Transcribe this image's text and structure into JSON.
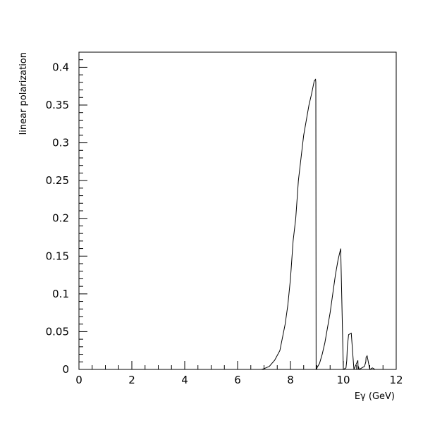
{
  "chart_data": {
    "type": "line",
    "title": "",
    "xlabel": "Eγ (GeV)",
    "ylabel": "linear polarization",
    "xlim": [
      0,
      12
    ],
    "ylim": [
      0,
      0.42
    ],
    "grid": false,
    "legend": "none",
    "colors": {
      "line": "#000000",
      "axes": "#000000",
      "background": "#ffffff"
    },
    "x_ticks": [
      {
        "value": 0,
        "label": "0"
      },
      {
        "value": 2,
        "label": "2"
      },
      {
        "value": 4,
        "label": "4"
      },
      {
        "value": 6,
        "label": "6"
      },
      {
        "value": 8,
        "label": "8"
      },
      {
        "value": 10,
        "label": "10"
      },
      {
        "value": 12,
        "label": "12"
      }
    ],
    "y_ticks": [
      {
        "value": 0,
        "label": "0"
      },
      {
        "value": 0.05,
        "label": "0.05"
      },
      {
        "value": 0.1,
        "label": "0.1"
      },
      {
        "value": 0.15,
        "label": "0.15"
      },
      {
        "value": 0.2,
        "label": "0.2"
      },
      {
        "value": 0.25,
        "label": "0.25"
      },
      {
        "value": 0.3,
        "label": "0.3"
      },
      {
        "value": 0.35,
        "label": "0.35"
      },
      {
        "value": 0.4,
        "label": "0.4"
      }
    ],
    "series": [
      {
        "x": [
          6.6,
          6.9,
          7.0,
          7.2,
          7.4,
          7.6,
          7.8,
          7.9,
          8.0,
          8.1,
          8.2,
          8.3,
          8.4,
          8.5,
          8.6,
          8.7,
          8.8,
          8.9,
          8.95,
          8.96,
          8.97,
          9.0,
          9.1,
          9.2,
          9.3,
          9.4,
          9.5,
          9.6,
          9.7,
          9.8,
          9.9,
          10.0,
          10.1,
          10.13,
          10.14,
          10.15,
          10.2,
          10.3,
          10.4,
          10.5,
          10.55,
          10.56,
          10.57,
          10.6,
          10.7,
          10.8,
          10.85,
          10.86,
          10.9,
          11.0,
          11.1,
          11.2,
          11.3,
          11.4,
          11.42,
          11.43,
          11.5,
          11.6
        ],
        "y": [
          0.0,
          0.0,
          0.001,
          0.004,
          0.012,
          0.025,
          0.06,
          0.085,
          0.12,
          0.17,
          0.2,
          0.25,
          0.28,
          0.31,
          0.33,
          0.35,
          0.365,
          0.382,
          0.384,
          0.38,
          0.0,
          0.002,
          0.008,
          0.02,
          0.035,
          0.055,
          0.075,
          0.1,
          0.125,
          0.145,
          0.16,
          0.0,
          0.002,
          0.012,
          0.02,
          0.03,
          0.046,
          0.048,
          0.0,
          0.008,
          0.012,
          0.0,
          0.004,
          0.0,
          0.002,
          0.004,
          0.01,
          0.016,
          0.018,
          0.0,
          0.002,
          0.0,
          0.0,
          0.0,
          0.0,
          0.0,
          0.0,
          0.0
        ]
      }
    ]
  }
}
